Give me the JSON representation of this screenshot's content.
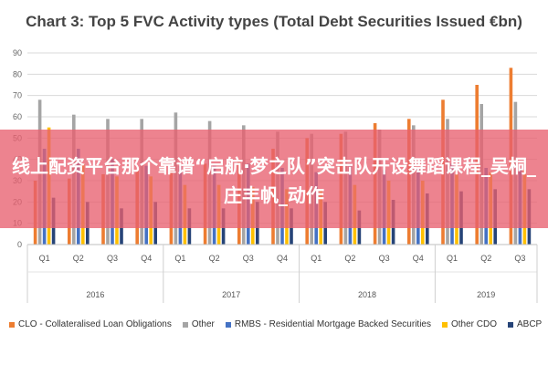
{
  "banner_text": "线上配资平台那个靠谱“启航·梦之队”突击队开设舞蹈课程_吴桐_庄丰帆_动作",
  "chart_data": {
    "type": "bar",
    "title": "Chart 3: Top 5 FVC Activity types (Total Debt Securities Issued €bn)",
    "xlabel": "",
    "ylabel": "",
    "ylim": [
      0,
      90
    ],
    "yticks": [
      0,
      10,
      20,
      30,
      40,
      50,
      60,
      70,
      80,
      90
    ],
    "grid": true,
    "legend_position": "bottom",
    "categories": [
      "Q1",
      "Q2",
      "Q3",
      "Q4",
      "Q1",
      "Q2",
      "Q3",
      "Q4",
      "Q1",
      "Q2",
      "Q3",
      "Q4",
      "Q1",
      "Q2",
      "Q3"
    ],
    "groups": [
      {
        "label": "2016",
        "count": 4
      },
      {
        "label": "2017",
        "count": 4
      },
      {
        "label": "2018",
        "count": 4
      },
      {
        "label": "2019",
        "count": 3
      }
    ],
    "series": [
      {
        "name": "CLO - Collateralised Loan Obligations",
        "color": "#ed7d31",
        "values": [
          30,
          31,
          33,
          35,
          35,
          38,
          40,
          45,
          50,
          52,
          57,
          59,
          68,
          75,
          83
        ]
      },
      {
        "name": "Other",
        "color": "#a5a5a5",
        "values": [
          68,
          61,
          59,
          59,
          62,
          58,
          56,
          53,
          52,
          53,
          54,
          56,
          59,
          66,
          67
        ]
      },
      {
        "name": "RMBS - Residential Mortgage Backed Securities",
        "color": "#4472c4",
        "values": [
          45,
          45,
          40,
          37,
          37,
          37,
          38,
          36,
          34,
          38,
          35,
          36,
          38,
          36,
          36
        ]
      },
      {
        "name": "Other CDO",
        "color": "#ffc000",
        "values": [
          55,
          38,
          32,
          32,
          28,
          28,
          27,
          26,
          26,
          28,
          30,
          30,
          33,
          34,
          35
        ]
      },
      {
        "name": "ABCP",
        "color": "#264478",
        "values": [
          22,
          20,
          17,
          20,
          17,
          17,
          20,
          17,
          20,
          16,
          21,
          24,
          25,
          26,
          26
        ]
      }
    ]
  }
}
